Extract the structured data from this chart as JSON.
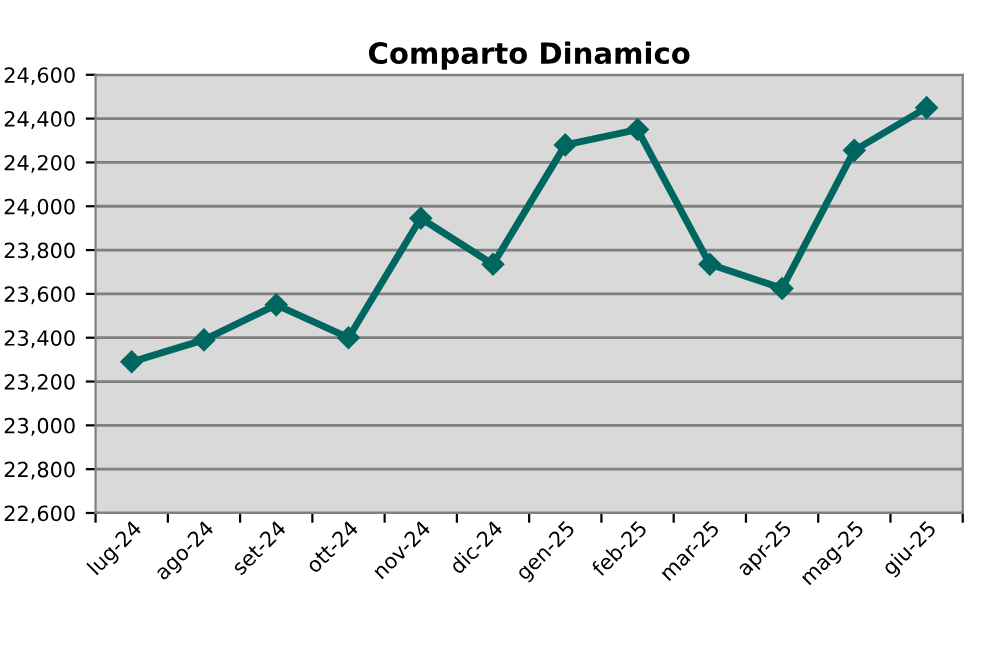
{
  "chart_data": {
    "type": "line",
    "title": "Comparto Dinamico",
    "categories": [
      "lug-24",
      "ago-24",
      "set-24",
      "ott-24",
      "nov-24",
      "dic-24",
      "gen-25",
      "feb-25",
      "mar-25",
      "apr-25",
      "mag-25",
      "giu-25"
    ],
    "series": [
      {
        "color": "#006660",
        "values": [
          23290,
          23390,
          23550,
          23400,
          23945,
          23735,
          24280,
          24350,
          23735,
          23625,
          24255,
          24450
        ]
      }
    ],
    "ylim": [
      22600,
      24600
    ],
    "yticks": [
      {
        "value": 22600,
        "label": "22,600"
      },
      {
        "value": 22800,
        "label": "22,800"
      },
      {
        "value": 23000,
        "label": "23,000"
      },
      {
        "value": 23200,
        "label": "23,200"
      },
      {
        "value": 23400,
        "label": "23,400"
      },
      {
        "value": 23600,
        "label": "23,600"
      },
      {
        "value": 23800,
        "label": "23,800"
      },
      {
        "value": 24000,
        "label": "24,000"
      },
      {
        "value": 24200,
        "label": "24,200"
      },
      {
        "value": 24400,
        "label": "24,400"
      },
      {
        "value": 24600,
        "label": "24,600"
      }
    ],
    "grid": "y",
    "marker": "diamond",
    "line_style": "solid",
    "legend": false
  }
}
